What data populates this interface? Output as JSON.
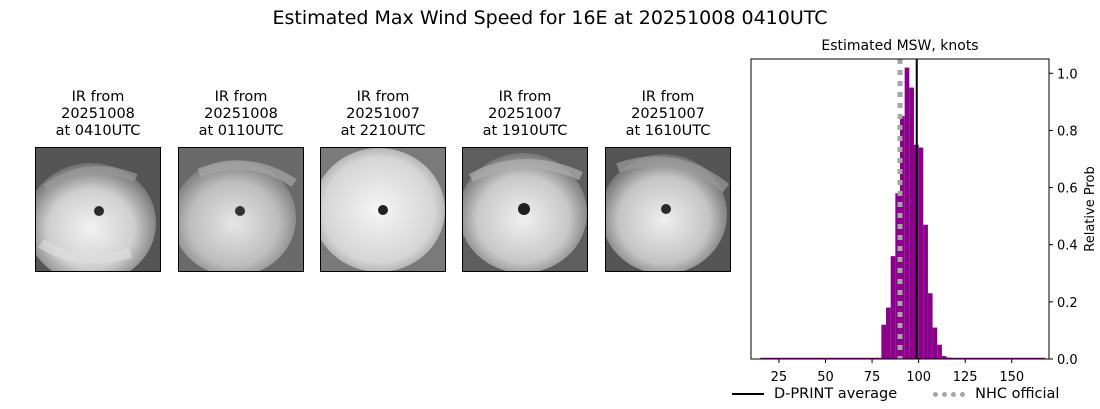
{
  "title": "Estimated Max Wind Speed for 16E at 20251008 0410UTC",
  "ir_panels": [
    {
      "line1": "IR from",
      "line2": "20251008",
      "line3": "at 0410UTC"
    },
    {
      "line1": "IR from",
      "line2": "20251008",
      "line3": "at 0110UTC"
    },
    {
      "line1": "IR from",
      "line2": "20251007",
      "line3": "at 2210UTC"
    },
    {
      "line1": "IR from",
      "line2": "20251007",
      "line3": "at 1910UTC"
    },
    {
      "line1": "IR from",
      "line2": "20251007",
      "line3": "at 1610UTC"
    }
  ],
  "chart_data": {
    "type": "bar",
    "title": "Estimated MSW, knots",
    "xlabel": "",
    "ylabel": "Relative Prob",
    "xlim": [
      10,
      170
    ],
    "ylim": [
      0,
      1.05
    ],
    "xticks": [
      25,
      50,
      75,
      100,
      125,
      150
    ],
    "yticks": [
      0.0,
      0.2,
      0.4,
      0.6,
      0.8,
      1.0
    ],
    "ytick_labels": [
      "0.0",
      "0.2",
      "0.4",
      "0.6",
      "0.8",
      "1.0"
    ],
    "y_axis_side": "right",
    "bar_color": "#8b008b",
    "bin_width": 2.5,
    "bins": [
      {
        "x": 81.25,
        "value": 0.12
      },
      {
        "x": 83.75,
        "value": 0.18
      },
      {
        "x": 86.25,
        "value": 0.36
      },
      {
        "x": 88.75,
        "value": 0.58
      },
      {
        "x": 91.25,
        "value": 0.85
      },
      {
        "x": 93.75,
        "value": 1.02
      },
      {
        "x": 96.25,
        "value": 0.95
      },
      {
        "x": 98.75,
        "value": 0.75
      },
      {
        "x": 101.25,
        "value": 0.74
      },
      {
        "x": 103.75,
        "value": 0.47
      },
      {
        "x": 106.25,
        "value": 0.23
      },
      {
        "x": 108.75,
        "value": 0.11
      },
      {
        "x": 111.25,
        "value": 0.05
      },
      {
        "x": 113.75,
        "value": 0.01
      },
      {
        "x": 116.25,
        "value": 0.005
      }
    ],
    "baseline_range": [
      15,
      168
    ],
    "dprint_average": 99,
    "nhc_official": 90,
    "legend": [
      {
        "label": "D-PRINT average",
        "style": "solid",
        "color": "#000000"
      },
      {
        "label": "NHC official",
        "style": "dotted",
        "color": "#a6a6a6"
      }
    ],
    "legend_position": "bottom"
  }
}
